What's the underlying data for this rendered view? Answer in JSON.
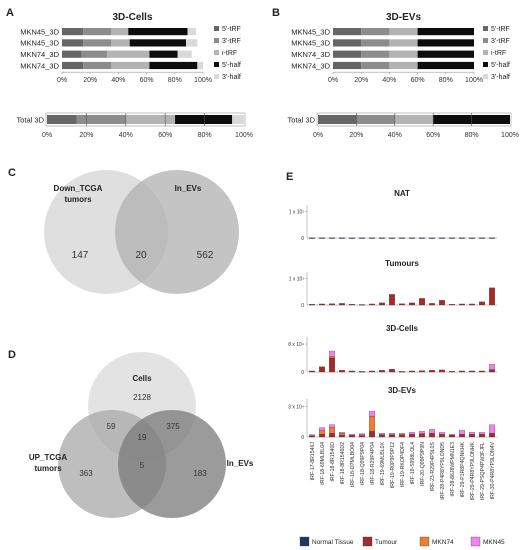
{
  "panels": {
    "A": "A",
    "B": "B",
    "C": "C",
    "D": "D",
    "E": "E"
  },
  "stack_colors": {
    "5'-tRF": "#666666",
    "3'-tRF": "#8c8c8c",
    "i-tRF": "#b3b3b3",
    "5'-half": "#0d0d0d",
    "3'-half": "#d9d9d9"
  },
  "chart_data": [
    {
      "panel": "A",
      "type": "bar",
      "orientation": "horizontal",
      "stacked": true,
      "title": "3D-Cells",
      "categories": [
        "MKN45_3D",
        "MKN45_3D",
        "MKN74_3D",
        "MKN74_3D"
      ],
      "series": [
        {
          "name": "5'-tRF",
          "values": [
            15,
            15,
            14,
            15
          ]
        },
        {
          "name": "3'-tRF",
          "values": [
            20,
            20,
            18,
            20
          ]
        },
        {
          "name": "i-tRF",
          "values": [
            12,
            13,
            30,
            27
          ]
        },
        {
          "name": "5'-half",
          "values": [
            42,
            40,
            20,
            34
          ]
        },
        {
          "name": "3'-half",
          "values": [
            6,
            8,
            10,
            4
          ]
        }
      ],
      "xticks": [
        "0%",
        "20%",
        "40%",
        "60%",
        "80%",
        "100%"
      ],
      "xlim": [
        0,
        100
      ],
      "legend": "right"
    },
    {
      "panel": "A",
      "type": "bar",
      "orientation": "horizontal",
      "stacked": true,
      "title": "",
      "categories": [
        "Total 3D"
      ],
      "series": [
        {
          "name": "5'-tRF",
          "values": [
            15
          ]
        },
        {
          "name": "3'-tRF",
          "values": [
            25
          ]
        },
        {
          "name": "i-tRF",
          "values": [
            25
          ]
        },
        {
          "name": "5'-half",
          "values": [
            29
          ]
        },
        {
          "name": "3'-half",
          "values": [
            6
          ]
        }
      ],
      "xticks": [
        "0%",
        "20%",
        "40%",
        "60%",
        "80%",
        "100%"
      ],
      "xlim": [
        0,
        100
      ]
    },
    {
      "panel": "B",
      "type": "bar",
      "orientation": "horizontal",
      "stacked": true,
      "title": "3D-EVs",
      "categories": [
        "MKN45_3D",
        "MKN45_3D",
        "MKN74_3D",
        "MKN74_3D"
      ],
      "series": [
        {
          "name": "5'-tRF",
          "values": [
            20,
            20,
            20,
            20
          ]
        },
        {
          "name": "3'-tRF",
          "values": [
            20,
            20,
            20,
            20
          ]
        },
        {
          "name": "i-tRF",
          "values": [
            20,
            20,
            20,
            20
          ]
        },
        {
          "name": "5'-half",
          "values": [
            40,
            40,
            40,
            40
          ]
        },
        {
          "name": "3'-half",
          "values": [
            0,
            0,
            0,
            0
          ]
        }
      ],
      "xticks": [
        "0%",
        "20%",
        "40%",
        "60%",
        "80%",
        "100%"
      ],
      "xlim": [
        0,
        100
      ],
      "legend": "right"
    },
    {
      "panel": "B",
      "type": "bar",
      "orientation": "horizontal",
      "stacked": true,
      "title": "",
      "categories": [
        "Total 3D"
      ],
      "series": [
        {
          "name": "5'-tRF",
          "values": [
            20
          ]
        },
        {
          "name": "3'-tRF",
          "values": [
            20
          ]
        },
        {
          "name": "i-tRF",
          "values": [
            20
          ]
        },
        {
          "name": "5'-half",
          "values": [
            40
          ]
        },
        {
          "name": "3'-half",
          "values": [
            0
          ]
        }
      ],
      "xticks": [
        "0%",
        "20%",
        "40%",
        "60%",
        "80%",
        "100%"
      ],
      "xlim": [
        0,
        100
      ]
    },
    {
      "panel": "E",
      "type": "bar",
      "stacked": true,
      "categories": [
        "tRF-17-8R1546J",
        "tRF-18-69MLBL04",
        "tRF-18-8R1546D",
        "tRF-18-8R1546D2",
        "tRF-18-O7MLBO04",
        "tRF-18-Q99P9P04",
        "tRF-18-R29P4P04",
        "tRF-19-69MLBL0X",
        "tRF-19-R0P9P9P12",
        "tRF-19-RKOP4DF4",
        "tRF-19-S998LOL4",
        "tRF-20-Q99P9P9N",
        "tRF-23-R29P4P9L0S",
        "tRF-28-P4R8YP9LOND5",
        "tRF-28-86J8WPMN1E3",
        "tRF-29-P1R8P4QNKHK",
        "tRF-29-P4R8YP9LONHK",
        "tRF-29-PSQP4PW3FJFL",
        "tRF-30-P4R8YP9LON4V"
      ],
      "series_names": [
        "Normal Tissue",
        "Tumour",
        "MKN74",
        "MKN45"
      ],
      "series_colors": [
        "#1f3864",
        "#a52a2a",
        "#ed7d31",
        "#ee82ee"
      ],
      "subplots": [
        {
          "title": "NAT",
          "ytick_label": "1 x 10¹",
          "ymax": 1.25,
          "ylim": [
            0,
            1.25
          ],
          "series": [
            {
              "name": "Normal Tissue",
              "values": [
                0.01,
                0.01,
                0.01,
                0.01,
                0.01,
                0.01,
                0.01,
                0.01,
                0.01,
                0.01,
                0.01,
                0.01,
                0.01,
                0.01,
                0.01,
                0.01,
                0.01,
                0.01,
                0.01
              ]
            },
            {
              "name": "Tumour",
              "values": [
                0,
                0,
                0,
                0,
                0,
                0,
                0,
                0,
                0,
                0,
                0,
                0,
                0,
                0,
                0,
                0,
                0,
                0,
                0
              ]
            },
            {
              "name": "MKN74",
              "values": [
                0,
                0,
                0,
                0,
                0,
                0,
                0,
                0,
                0,
                0,
                0,
                0,
                0,
                0,
                0,
                0,
                0,
                0,
                0
              ]
            },
            {
              "name": "MKN45",
              "values": [
                0,
                0,
                0,
                0,
                0,
                0,
                0,
                0,
                0,
                0,
                0,
                0,
                0,
                0,
                0,
                0,
                0,
                0,
                0
              ]
            }
          ]
        },
        {
          "title": "Tumours",
          "ytick_label": "1 x 10¹",
          "ymax": 1.25,
          "ylim": [
            0,
            1.25
          ],
          "series": [
            {
              "name": "Normal Tissue",
              "values": [
                0,
                0,
                0,
                0,
                0,
                0,
                0,
                0,
                0,
                0,
                0,
                0,
                0,
                0,
                0,
                0,
                0,
                0,
                0
              ]
            },
            {
              "name": "Tumour",
              "values": [
                0.03,
                0.04,
                0.05,
                0.06,
                0.03,
                0.02,
                0.04,
                0.08,
                0.4,
                0.05,
                0.08,
                0.25,
                0.06,
                0.18,
                0.03,
                0.04,
                0.04,
                0.12,
                0.65
              ]
            },
            {
              "name": "MKN74",
              "values": [
                0,
                0,
                0,
                0,
                0,
                0,
                0,
                0,
                0,
                0,
                0,
                0,
                0,
                0,
                0,
                0,
                0,
                0,
                0
              ]
            },
            {
              "name": "MKN45",
              "values": [
                0,
                0,
                0,
                0,
                0,
                0,
                0,
                0,
                0,
                0,
                0,
                0,
                0,
                0,
                0,
                0,
                0,
                0,
                0
              ]
            }
          ]
        },
        {
          "title": "3D-Cells",
          "ytick_label": "8 x 10⁴",
          "ymax": 10,
          "ylim": [
            0,
            10
          ],
          "series": [
            {
              "name": "Normal Tissue",
              "values": [
                0,
                0,
                0,
                0,
                0,
                0,
                0,
                0,
                0,
                0,
                0,
                0,
                0,
                0,
                0,
                0,
                0,
                0,
                0
              ]
            },
            {
              "name": "Tumour",
              "values": [
                0.3,
                1.5,
                4.0,
                0.5,
                0.3,
                0.2,
                0.3,
                0.5,
                0.8,
                0.2,
                0.3,
                0.4,
                0.5,
                0.6,
                0.2,
                0.3,
                0.3,
                0.3,
                0.7
              ]
            },
            {
              "name": "MKN74",
              "values": [
                0,
                0,
                0.5,
                0,
                0,
                0,
                0,
                0,
                0,
                0,
                0,
                0,
                0,
                0,
                0,
                0,
                0,
                0,
                0
              ]
            },
            {
              "name": "MKN45",
              "values": [
                0,
                0,
                1.5,
                0,
                0,
                0,
                0,
                0,
                0,
                0,
                0,
                0,
                0,
                0,
                0,
                0,
                0,
                0,
                1.5
              ]
            }
          ]
        },
        {
          "title": "3D-EVs",
          "ytick_label": "3 x 10⁴",
          "ymax": 4,
          "ylim": [
            0,
            4
          ],
          "series": [
            {
              "name": "Normal Tissue",
              "values": [
                0,
                0,
                0,
                0,
                0,
                0,
                0,
                0,
                0,
                0,
                0,
                0,
                0,
                0,
                0,
                0,
                0,
                0,
                0
              ]
            },
            {
              "name": "Tumour",
              "values": [
                0.15,
                0.3,
                0.4,
                0.2,
                0.2,
                0.15,
                0.6,
                0.2,
                0.2,
                0.2,
                0.3,
                0.3,
                0.4,
                0.3,
                0.2,
                0.3,
                0.3,
                0.3,
                0.4
              ]
            },
            {
              "name": "MKN74",
              "values": [
                0,
                0.4,
                0.6,
                0.2,
                0,
                0.1,
                1.6,
                0.1,
                0.1,
                0.1,
                0,
                0.1,
                0,
                0,
                0,
                0,
                0,
                0,
                0
              ]
            },
            {
              "name": "MKN45",
              "values": [
                0.1,
                0.3,
                0.3,
                0.1,
                0.1,
                0.1,
                0.5,
                0.1,
                0.1,
                0.1,
                0.2,
                0.2,
                0.4,
                0.2,
                0.1,
                0.4,
                0.2,
                0.2,
                0.9
              ]
            }
          ]
        }
      ],
      "legend": "bottom"
    }
  ],
  "venn_C": {
    "left_label": "Down_TCGA",
    "left_label2": "tumors",
    "right_label": "In_EVs",
    "left_only": "147",
    "both": "20",
    "right_only": "562"
  },
  "venn_D": {
    "top_label": "Cells",
    "left_label": "UP_TCGA",
    "left_label2": "tumors",
    "right_label": "In_EVs",
    "top_only": "2128",
    "left_only": "363",
    "right_only": "183",
    "top_left": "59",
    "top_right": "375",
    "left_right": "5",
    "center": "19"
  }
}
